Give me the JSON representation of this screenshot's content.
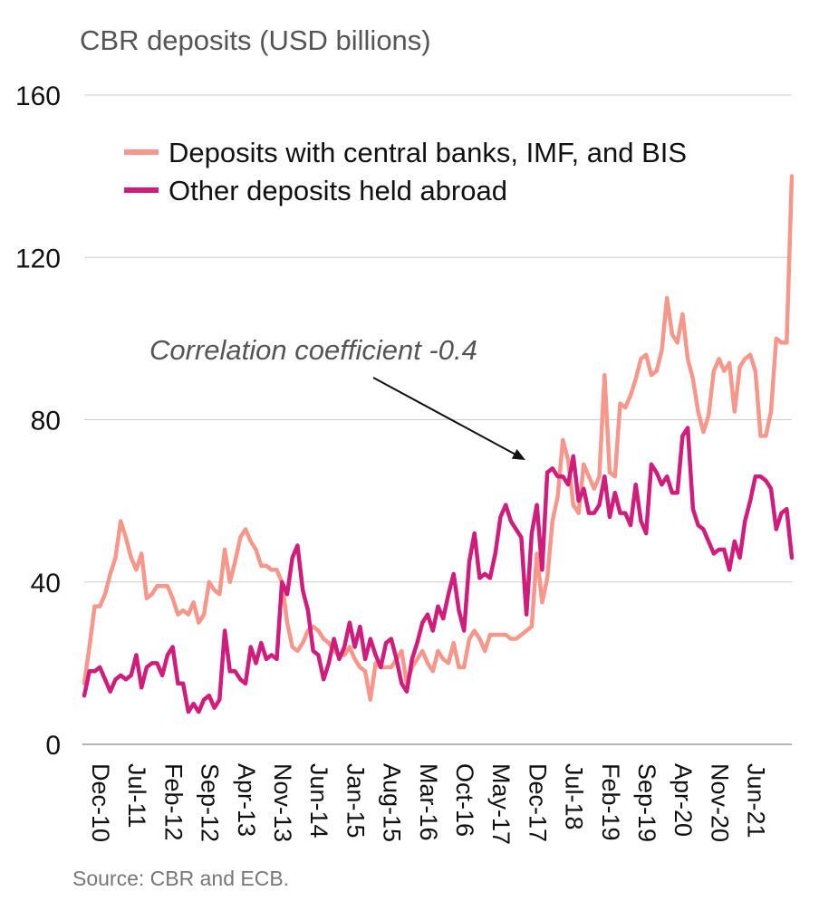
{
  "colors": {
    "series1": "#F7968A",
    "series2": "#D01C7A",
    "grid": "#CCCCCC",
    "axis": "#888888",
    "annotation_arrow": "#111111"
  },
  "chart_data": {
    "type": "line",
    "ylabel": "CBR deposits (USD billions)",
    "xlabel": "",
    "ylim": [
      0,
      160
    ],
    "yticks": [
      0,
      40,
      80,
      120,
      160
    ],
    "grid": true,
    "legend_position": "top-left",
    "x_start": "Dec-10",
    "x_end": "Jan-22",
    "x_tick_labels": [
      "Dec-10",
      "Jul-11",
      "Feb-12",
      "Sep-12",
      "Apr-13",
      "Nov-13",
      "Jun-14",
      "Jan-15",
      "Aug-15",
      "Mar-16",
      "Oct-16",
      "May-17",
      "Dec-17",
      "Jul-18",
      "Feb-19",
      "Sep-19",
      "Apr-20",
      "Nov-20",
      "Jun-21"
    ],
    "series": [
      {
        "name": "Deposits with central banks, IMF, and BIS",
        "color": "#F7968A",
        "values": [
          15,
          24,
          34,
          34,
          37,
          42,
          46,
          55,
          51,
          46,
          43,
          47,
          36,
          37,
          39,
          39,
          39,
          36,
          32,
          33,
          32,
          35,
          30,
          32,
          40,
          38,
          37,
          48,
          40,
          45,
          51,
          53,
          50,
          48,
          44,
          44,
          43,
          43,
          40,
          30,
          24,
          23,
          25,
          28,
          29,
          28,
          26,
          25,
          23,
          22,
          22,
          24,
          21,
          19,
          18,
          11,
          20,
          19,
          19,
          19,
          21,
          23,
          15,
          19,
          21,
          23,
          20,
          18,
          23,
          21,
          20,
          25,
          19,
          19,
          26,
          28,
          26,
          23,
          27,
          27,
          27,
          27,
          26,
          26,
          27,
          28,
          29,
          47,
          35,
          41,
          55,
          61,
          75,
          70,
          59,
          57,
          69,
          66,
          63,
          66,
          91,
          67,
          66,
          84,
          83,
          86,
          90,
          95,
          96,
          91,
          92,
          97,
          110,
          101,
          99,
          106,
          95,
          90,
          82,
          77,
          81,
          92,
          95,
          92,
          94,
          82,
          93,
          95,
          96,
          92,
          76,
          76,
          82,
          100,
          99,
          99,
          140
        ]
      },
      {
        "name": "Other deposits held abroad",
        "color": "#D01C7A",
        "values": [
          12,
          18,
          18,
          19,
          16,
          13,
          16,
          17,
          16,
          17,
          22,
          14,
          19,
          20,
          20,
          17,
          22,
          24,
          15,
          15,
          8,
          10,
          8,
          11,
          12,
          9,
          11,
          28,
          18,
          18,
          16,
          15,
          24,
          20,
          25,
          21,
          22,
          21,
          40,
          37,
          46,
          49,
          38,
          33,
          23,
          22,
          16,
          20,
          26,
          21,
          24,
          30,
          24,
          29,
          21,
          26,
          22,
          19,
          25,
          26,
          21,
          15,
          13,
          21,
          25,
          30,
          32,
          28,
          34,
          31,
          37,
          42,
          33,
          28,
          45,
          52,
          41,
          42,
          41,
          47,
          56,
          59,
          55,
          53,
          51,
          32,
          52,
          59,
          43,
          67,
          68,
          66,
          66,
          64,
          71,
          60,
          63,
          57,
          57,
          59,
          66,
          56,
          62,
          57,
          57,
          54,
          64,
          55,
          52,
          69,
          67,
          64,
          66,
          62,
          62,
          76,
          78,
          58,
          54,
          53,
          50,
          47,
          48,
          48,
          43,
          50,
          46,
          55,
          60,
          66,
          66,
          65,
          63,
          53,
          57,
          58,
          46
        ]
      }
    ],
    "annotations": [
      {
        "text": "Correlation coefficient -0.4",
        "arrow_to_x_index": 85
      }
    ],
    "source": "Source: CBR and ECB."
  }
}
